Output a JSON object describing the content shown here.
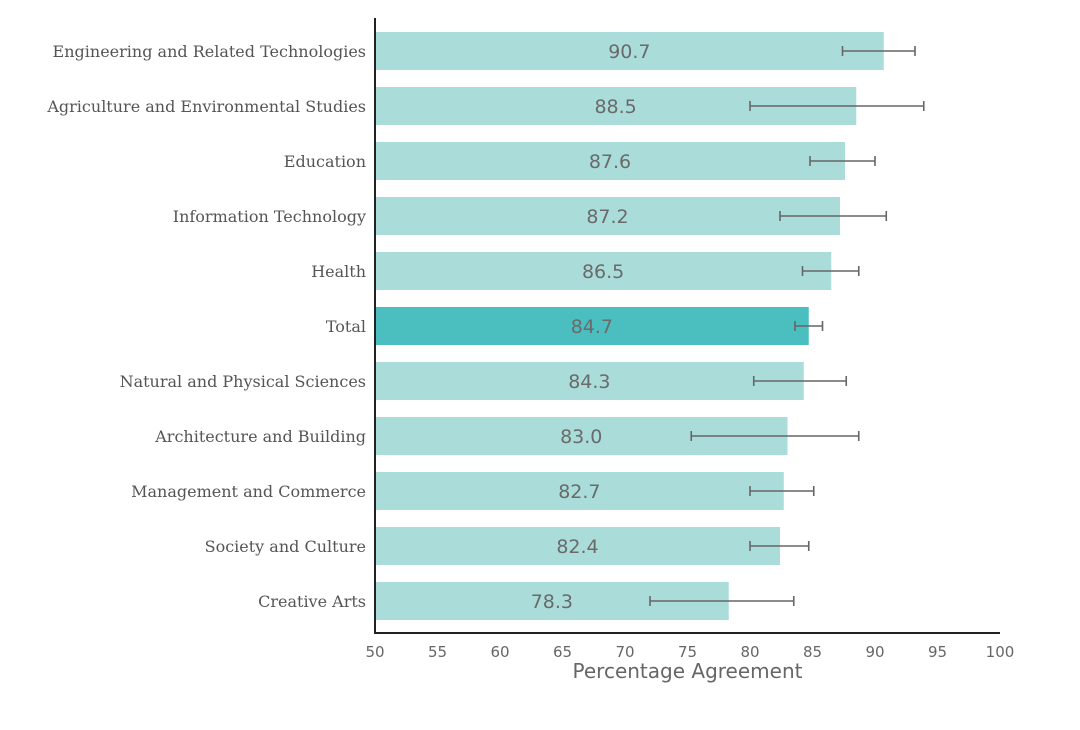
{
  "chart_data": {
    "type": "bar",
    "orientation": "horizontal",
    "categories": [
      "Engineering and Related Technologies",
      "Agriculture and Environmental Studies",
      "Education",
      "Information Technology",
      "Health",
      "Total",
      "Natural and Physical Sciences",
      "Architecture and Building",
      "Management and Commerce",
      "Society and Culture",
      "Creative Arts"
    ],
    "values": [
      90.7,
      88.5,
      87.6,
      87.2,
      86.5,
      84.7,
      84.3,
      83.0,
      82.7,
      82.4,
      78.3
    ],
    "value_labels": [
      "90.7",
      "88.5",
      "87.6",
      "87.2",
      "86.5",
      "84.7",
      "84.3",
      "83.0",
      "82.7",
      "82.4",
      "78.3"
    ],
    "error_low": [
      87.4,
      80.0,
      84.8,
      82.4,
      84.2,
      83.6,
      80.3,
      75.3,
      80.0,
      80.0,
      72.0
    ],
    "error_high": [
      93.2,
      93.9,
      90.0,
      90.9,
      88.7,
      85.8,
      87.7,
      88.7,
      85.1,
      84.7,
      83.5
    ],
    "highlight_category": "Total",
    "xlabel": "Percentage Agreement",
    "ylabel": "",
    "xlim": [
      50,
      100
    ],
    "x_ticks": [
      "50",
      "55",
      "60",
      "65",
      "70",
      "75",
      "80",
      "85",
      "90",
      "95",
      "100"
    ],
    "grid": false,
    "legend": "none",
    "colors": {
      "bar": "#aadcda",
      "highlight_bar": "#4bbfbf",
      "error_bar": "#666666",
      "axis": "#222222"
    }
  }
}
